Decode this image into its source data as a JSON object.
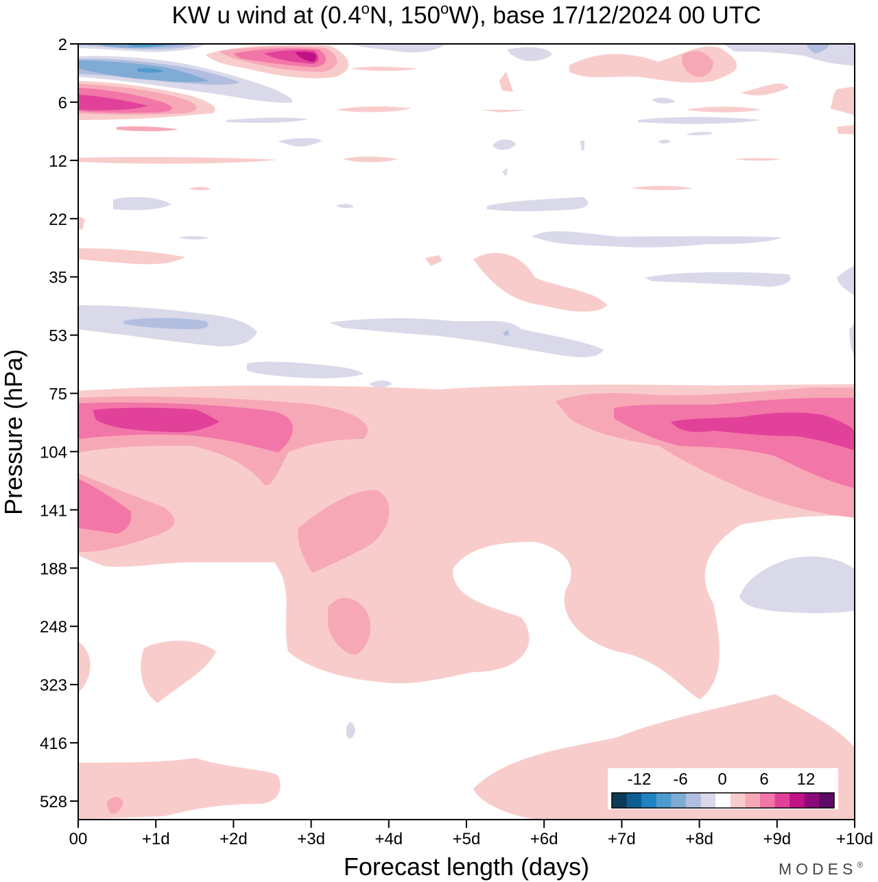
{
  "chart_data": {
    "type": "heatmap",
    "title": "KW u wind at (0.4",
    "title_sup_1": "o",
    "title_mid": "N, 150",
    "title_sup_2": "o",
    "title_end": "W),  base 17/12/2024  00 UTC",
    "xlabel": "Forecast length (days)",
    "ylabel": "Pressure (hPa)",
    "x_ticks": [
      "00",
      "+1d",
      "+2d",
      "+3d",
      "+4d",
      "+5d",
      "+6d",
      "+7d",
      "+8d",
      "+9d",
      "+10d"
    ],
    "xlim_days": [
      0,
      10
    ],
    "y_ticks": [
      "2",
      "6",
      "12",
      "22",
      "35",
      "53",
      "75",
      "104",
      "141",
      "188",
      "248",
      "323",
      "416",
      "528"
    ],
    "y_scale": "pressure levels (top to bottom, increasing)",
    "colorbar": {
      "labels": [
        "-12",
        "-6",
        "0",
        "6",
        "12"
      ],
      "boundaries": [
        -18,
        -15,
        -12,
        -9,
        -6,
        -3,
        -1.5,
        1.5,
        3,
        6,
        9,
        12,
        15,
        18
      ],
      "colors": [
        "#0d3a57",
        "#0c5f95",
        "#1f83c1",
        "#4d9bcc",
        "#7fabd4",
        "#b2bedf",
        "#d9d9ea",
        "#ffffff",
        "#f9cccc",
        "#f7a8b6",
        "#f276a8",
        "#e2419a",
        "#c11187",
        "#8d0a7a",
        "#5c0a63"
      ],
      "placement": "bottom-right inside plot"
    },
    "regions": [
      {
        "sign": "positive",
        "level": 1,
        "desc": "lower stratosphere jet 75-141 hPa",
        "t0": 0,
        "t1": 10,
        "p": [
          75,
          160
        ]
      },
      {
        "sign": "positive",
        "level": 4,
        "desc": "max near 85-95 hPa day 0.2-1.8",
        "t0": 0.2,
        "t1": 1.8,
        "p": [
          85,
          95
        ]
      },
      {
        "sign": "positive",
        "level": 4,
        "desc": "max near 90-110 hPa day 7.7-10",
        "t0": 7.7,
        "t1": 10,
        "p": [
          88,
          120
        ]
      },
      {
        "sign": "positive",
        "level": 5,
        "desc": "peak near 3 hPa day 2.5-3",
        "t0": 2.5,
        "t1": 3.1,
        "p": [
          2,
          4
        ]
      },
      {
        "sign": "negative",
        "level": 3,
        "desc": "negative near 3-4 hPa day 0-2",
        "t0": 0,
        "t1": 2.1,
        "p": [
          3,
          5
        ]
      },
      {
        "sign": "negative",
        "level": 1,
        "desc": "negative band 20-50 hPa day 6-9",
        "t0": 6,
        "t1": 9.3,
        "p": [
          25,
          45
        ]
      },
      {
        "sign": "negative",
        "level": 1,
        "desc": "negative patch 188-248 hPa day 8.5-10",
        "t0": 8.5,
        "t1": 10,
        "p": [
          185,
          245
        ]
      }
    ]
  },
  "colorbar_labels": [
    "-12",
    "-6",
    "0",
    "6",
    "12"
  ],
  "brand": "MODES",
  "brand_mark": "®"
}
